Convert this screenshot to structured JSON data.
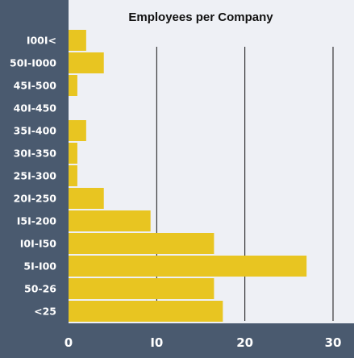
{
  "chart_data": {
    "type": "bar",
    "orientation": "horizontal",
    "title": "Employees per Company",
    "xlabel": "",
    "ylabel": "",
    "categories": [
      "1001<",
      "501-1000",
      "451-500",
      "401-450",
      "351-400",
      "301-350",
      "251-300",
      "201-250",
      "151-200",
      "101-150",
      "51-100",
      "50-26",
      "<25"
    ],
    "display_labels": [
      "I00I<",
      "50I-I000",
      "45I-500",
      "40I-450",
      "35I-400",
      "30I-350",
      "25I-300",
      "20I-250",
      "I5I-200",
      "I0I-I50",
      "5I-I00",
      "50-26",
      "<25"
    ],
    "values": [
      2,
      4,
      1,
      0,
      2,
      1,
      1,
      4,
      9.3,
      16.5,
      27,
      16.5,
      17.5
    ],
    "xlim": [
      0,
      31
    ],
    "xticks": [
      0,
      10,
      20,
      30
    ],
    "xtick_labels": [
      "0",
      "I0",
      "20",
      "30"
    ],
    "grid": true,
    "legend": "none"
  },
  "colors": {
    "bar": "#e8c521",
    "plot_background": "#eef0f5",
    "outer_background": "#4a5a6f",
    "gridline": "#111111",
    "axis_text": "#ffffff",
    "title_text": "#111111"
  }
}
